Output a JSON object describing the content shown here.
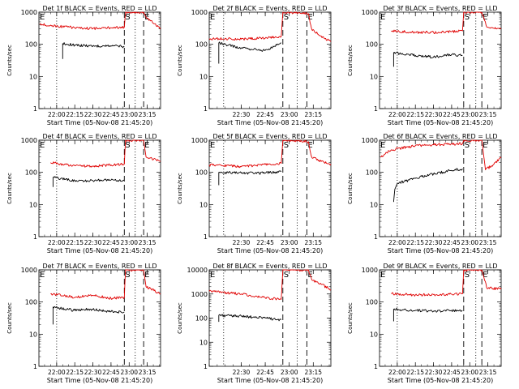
{
  "figure": {
    "xlabel": "Start Time (05-Nov-08 21:45:20)",
    "ylabel": "Counts/sec",
    "y_ticks": [
      {
        "value": 1,
        "label": "1"
      },
      {
        "value": 10,
        "label": "10"
      },
      {
        "value": 100,
        "label": "100"
      },
      {
        "value": 1000,
        "label": "1000"
      },
      {
        "value": 10000,
        "label": "10000"
      }
    ],
    "colors": {
      "events": "#000000",
      "lld": "#e00000"
    },
    "time_markers": {
      "S": "S",
      "E": "E",
      "corner": "E"
    }
  },
  "chart_data": [
    {
      "type": "line",
      "title": "Det 1f BLACK = Events, RED = LLD",
      "xlabel": "Start Time (05-Nov-08 21:45:20)",
      "ylabel": "Counts/sec",
      "x_range": [
        "21:45:20",
        "23:26"
      ],
      "y_log": true,
      "ylim": [
        1,
        1000
      ],
      "x_ticks": [
        "22:00",
        "22:15",
        "22:30",
        "22:45",
        "23:00",
        "23:15"
      ],
      "series": [
        {
          "name": "Events",
          "color": "black",
          "points": [
            [
              "22:05",
              35
            ],
            [
              "22:05",
              105
            ],
            [
              "22:15",
              95
            ],
            [
              "22:30",
              88
            ],
            [
              "22:45",
              90
            ],
            [
              "22:56",
              85
            ]
          ]
        },
        {
          "name": "LLD",
          "color": "red",
          "points": [
            [
              "21:46",
              420
            ],
            [
              "22:00",
              370
            ],
            [
              "22:15",
              330
            ],
            [
              "22:30",
              310
            ],
            [
              "22:45",
              330
            ],
            [
              "22:56",
              340
            ],
            [
              "22:57",
              1000
            ],
            [
              "23:12",
              1000
            ],
            [
              "23:14",
              700
            ],
            [
              "23:20",
              450
            ],
            [
              "23:26",
              320
            ]
          ]
        }
      ],
      "vlines": [
        {
          "time": "22:00",
          "style": "dotted"
        },
        {
          "time": "22:56",
          "style": "dashed",
          "label": "S"
        },
        {
          "time": "23:05",
          "style": "dotted"
        },
        {
          "time": "23:12",
          "style": "dashed",
          "label": "E"
        }
      ]
    },
    {
      "type": "line",
      "title": "Det 2f BLACK = Events, RED = LLD",
      "xlabel": "Start Time (05-Nov-08 21:45:20)",
      "ylabel": "Counts/sec",
      "x_range": [
        "22:10",
        "23:26"
      ],
      "y_log": true,
      "ylim": [
        1,
        1000
      ],
      "x_ticks": [
        "22:30",
        "22:45",
        "23:00",
        "23:15"
      ],
      "series": [
        {
          "name": "Events",
          "color": "black",
          "points": [
            [
              "22:16",
              25
            ],
            [
              "22:16",
              110
            ],
            [
              "22:30",
              75
            ],
            [
              "22:45",
              65
            ],
            [
              "22:55",
              110
            ]
          ]
        },
        {
          "name": "LLD",
          "color": "red",
          "points": [
            [
              "22:10",
              150
            ],
            [
              "22:30",
              145
            ],
            [
              "22:45",
              155
            ],
            [
              "22:55",
              175
            ],
            [
              "22:56",
              1000
            ],
            [
              "23:12",
              900
            ],
            [
              "23:14",
              300
            ],
            [
              "23:20",
              180
            ],
            [
              "23:26",
              120
            ]
          ]
        }
      ],
      "vlines": [
        {
          "time": "22:19",
          "style": "dotted"
        },
        {
          "time": "22:56",
          "style": "dashed",
          "label": "S"
        },
        {
          "time": "23:05",
          "style": "dotted"
        },
        {
          "time": "23:11",
          "style": "dashed",
          "label": "E"
        }
      ]
    },
    {
      "type": "line",
      "title": "Det 3f BLACK = Events, RED = LLD",
      "xlabel": "Start Time (05-Nov-08 21:45:20)",
      "ylabel": "Counts/sec",
      "x_range": [
        "21:45:20",
        "23:26"
      ],
      "y_log": true,
      "ylim": [
        1,
        1000
      ],
      "x_ticks": [
        "22:00",
        "22:15",
        "22:30",
        "22:45",
        "23:00",
        "23:15"
      ],
      "series": [
        {
          "name": "Events",
          "color": "black",
          "points": [
            [
              "21:57",
              20
            ],
            [
              "21:57",
              55
            ],
            [
              "22:15",
              45
            ],
            [
              "22:30",
              40
            ],
            [
              "22:45",
              48
            ],
            [
              "22:54",
              45
            ]
          ]
        },
        {
          "name": "LLD",
          "color": "red",
          "points": [
            [
              "21:55",
              260
            ],
            [
              "22:15",
              235
            ],
            [
              "22:30",
              235
            ],
            [
              "22:45",
              250
            ],
            [
              "22:54",
              260
            ],
            [
              "22:55",
              1000
            ],
            [
              "23:10",
              1000
            ],
            [
              "23:14",
              350
            ],
            [
              "23:26",
              300
            ]
          ]
        }
      ],
      "vlines": [
        {
          "time": "22:00",
          "style": "dotted"
        },
        {
          "time": "22:55",
          "style": "dashed",
          "label": "S"
        },
        {
          "time": "23:05",
          "style": "dotted"
        },
        {
          "time": "23:10",
          "style": "dashed",
          "label": "E"
        }
      ]
    },
    {
      "type": "line",
      "title": "Det 4f BLACK = Events, RED = LLD",
      "xlabel": "Start Time (05-Nov-08 21:45:20)",
      "ylabel": "Counts/sec",
      "x_range": [
        "21:45:20",
        "23:26"
      ],
      "y_log": true,
      "ylim": [
        1,
        1000
      ],
      "x_ticks": [
        "22:00",
        "22:15",
        "22:30",
        "22:45",
        "23:00",
        "23:15"
      ],
      "series": [
        {
          "name": "Events",
          "color": "black",
          "points": [
            [
              "21:57",
              35
            ],
            [
              "21:57",
              70
            ],
            [
              "22:15",
              55
            ],
            [
              "22:30",
              55
            ],
            [
              "22:45",
              58
            ],
            [
              "22:56",
              55
            ]
          ]
        },
        {
          "name": "LLD",
          "color": "red",
          "points": [
            [
              "21:55",
              200
            ],
            [
              "22:15",
              160
            ],
            [
              "22:30",
              155
            ],
            [
              "22:45",
              170
            ],
            [
              "22:56",
              180
            ],
            [
              "22:57",
              1000
            ],
            [
              "23:12",
              1000
            ],
            [
              "23:14",
              300
            ],
            [
              "23:26",
              220
            ]
          ]
        }
      ],
      "vlines": [
        {
          "time": "22:00",
          "style": "dotted"
        },
        {
          "time": "22:56",
          "style": "dashed",
          "label": "S"
        },
        {
          "time": "23:05",
          "style": "dotted"
        },
        {
          "time": "23:12",
          "style": "dashed",
          "label": "E"
        }
      ]
    },
    {
      "type": "line",
      "title": "Det 5f BLACK = Events, RED = LLD",
      "xlabel": "Start Time (05-Nov-08 21:45:20)",
      "ylabel": "Counts/sec",
      "x_range": [
        "22:10",
        "23:26"
      ],
      "y_log": true,
      "ylim": [
        1,
        1000
      ],
      "x_ticks": [
        "22:30",
        "22:45",
        "23:00",
        "23:15"
      ],
      "series": [
        {
          "name": "Events",
          "color": "black",
          "points": [
            [
              "22:16",
              40
            ],
            [
              "22:16",
              100
            ],
            [
              "22:30",
              95
            ],
            [
              "22:45",
              95
            ],
            [
              "22:55",
              105
            ]
          ]
        },
        {
          "name": "LLD",
          "color": "red",
          "points": [
            [
              "22:10",
              170
            ],
            [
              "22:30",
              150
            ],
            [
              "22:45",
              175
            ],
            [
              "22:55",
              190
            ],
            [
              "22:56",
              1000
            ],
            [
              "23:12",
              900
            ],
            [
              "23:14",
              300
            ],
            [
              "23:20",
              220
            ],
            [
              "23:26",
              180
            ]
          ]
        }
      ],
      "vlines": [
        {
          "time": "22:19",
          "style": "dotted"
        },
        {
          "time": "22:56",
          "style": "dashed",
          "label": "S"
        },
        {
          "time": "23:05",
          "style": "dotted"
        },
        {
          "time": "23:11",
          "style": "dashed",
          "label": "E"
        }
      ]
    },
    {
      "type": "line",
      "title": "Det 6f BLACK = Events, RED = LLD",
      "xlabel": "Start Time (05-Nov-08 21:45:20)",
      "ylabel": "Counts/sec",
      "x_range": [
        "21:45:20",
        "23:26"
      ],
      "y_log": true,
      "ylim": [
        1,
        1000
      ],
      "x_ticks": [
        "22:00",
        "22:15",
        "22:30",
        "22:45",
        "23:00",
        "23:15"
      ],
      "series": [
        {
          "name": "Events",
          "color": "black",
          "points": [
            [
              "21:57",
              12
            ],
            [
              "21:58",
              30
            ],
            [
              "22:00",
              45
            ],
            [
              "22:15",
              65
            ],
            [
              "22:30",
              90
            ],
            [
              "22:45",
              115
            ],
            [
              "22:54",
              130
            ]
          ]
        },
        {
          "name": "LLD",
          "color": "red",
          "points": [
            [
              "21:46",
              300
            ],
            [
              "21:55",
              500
            ],
            [
              "22:15",
              680
            ],
            [
              "22:30",
              720
            ],
            [
              "22:45",
              760
            ],
            [
              "22:54",
              780
            ],
            [
              "22:55",
              1000
            ],
            [
              "23:10",
              1000
            ],
            [
              "23:12",
              250
            ],
            [
              "23:13",
              120
            ],
            [
              "23:20",
              180
            ],
            [
              "23:26",
              300
            ]
          ]
        }
      ],
      "vlines": [
        {
          "time": "22:00",
          "style": "dotted"
        },
        {
          "time": "22:55",
          "style": "dashed",
          "label": "S"
        },
        {
          "time": "23:05",
          "style": "dotted"
        },
        {
          "time": "23:10",
          "style": "dashed",
          "label": "E"
        }
      ]
    },
    {
      "type": "line",
      "title": "Det 7f BLACK = Events, RED = LLD",
      "xlabel": "Start Time (05-Nov-08 21:45:20)",
      "ylabel": "Counts/sec",
      "x_range": [
        "21:45:20",
        "23:26"
      ],
      "y_log": true,
      "ylim": [
        1,
        1000
      ],
      "x_ticks": [
        "22:00",
        "22:15",
        "22:30",
        "22:45",
        "23:00",
        "23:15"
      ],
      "series": [
        {
          "name": "Events",
          "color": "black",
          "points": [
            [
              "21:57",
              20
            ],
            [
              "21:57",
              70
            ],
            [
              "22:15",
              55
            ],
            [
              "22:30",
              60
            ],
            [
              "22:45",
              50
            ],
            [
              "22:56",
              48
            ]
          ]
        },
        {
          "name": "LLD",
          "color": "red",
          "points": [
            [
              "21:55",
              180
            ],
            [
              "22:15",
              140
            ],
            [
              "22:30",
              160
            ],
            [
              "22:45",
              130
            ],
            [
              "22:56",
              140
            ],
            [
              "22:57",
              1000
            ],
            [
              "23:12",
              1000
            ],
            [
              "23:14",
              300
            ],
            [
              "23:26",
              180
            ]
          ]
        }
      ],
      "vlines": [
        {
          "time": "22:00",
          "style": "dotted"
        },
        {
          "time": "22:56",
          "style": "dashed",
          "label": "S"
        },
        {
          "time": "23:05",
          "style": "dotted"
        },
        {
          "time": "23:12",
          "style": "dashed",
          "label": "E"
        }
      ]
    },
    {
      "type": "line",
      "title": "Det 8f BLACK = Events, RED = LLD",
      "xlabel": "Start Time (05-Nov-08 21:45:20)",
      "ylabel": "Counts/sec",
      "x_range": [
        "22:10",
        "23:26"
      ],
      "y_log": true,
      "ylim": [
        1,
        10000
      ],
      "x_ticks": [
        "22:30",
        "22:45",
        "23:00",
        "23:15"
      ],
      "series": [
        {
          "name": "Events",
          "color": "black",
          "points": [
            [
              "22:16",
              70
            ],
            [
              "22:16",
              130
            ],
            [
              "22:30",
              120
            ],
            [
              "22:45",
              100
            ],
            [
              "22:55",
              85
            ]
          ]
        },
        {
          "name": "LLD",
          "color": "red",
          "points": [
            [
              "22:10",
              1300
            ],
            [
              "22:30",
              1000
            ],
            [
              "22:45",
              700
            ],
            [
              "22:55",
              600
            ],
            [
              "22:56",
              10000
            ],
            [
              "23:12",
              10000
            ],
            [
              "23:14",
              4000
            ],
            [
              "23:20",
              2500
            ],
            [
              "23:26",
              1500
            ]
          ]
        }
      ],
      "vlines": [
        {
          "time": "22:19",
          "style": "dotted"
        },
        {
          "time": "22:56",
          "style": "dashed",
          "label": "S"
        },
        {
          "time": "23:05",
          "style": "dotted"
        },
        {
          "time": "23:11",
          "style": "dashed",
          "label": "E"
        }
      ]
    },
    {
      "type": "line",
      "title": "Det 9f BLACK = Events, RED = LLD",
      "xlabel": "Start Time (05-Nov-08 21:45:20)",
      "ylabel": "Counts/sec",
      "x_range": [
        "21:45:20",
        "23:26"
      ],
      "y_log": true,
      "ylim": [
        1,
        1000
      ],
      "x_ticks": [
        "22:00",
        "22:15",
        "22:30",
        "22:45",
        "23:00",
        "23:15"
      ],
      "series": [
        {
          "name": "Events",
          "color": "black",
          "points": [
            [
              "21:57",
              25
            ],
            [
              "21:57",
              60
            ],
            [
              "22:15",
              55
            ],
            [
              "22:30",
              52
            ],
            [
              "22:45",
              55
            ],
            [
              "22:54",
              55
            ]
          ]
        },
        {
          "name": "LLD",
          "color": "red",
          "points": [
            [
              "21:55",
              180
            ],
            [
              "22:15",
              165
            ],
            [
              "22:30",
              170
            ],
            [
              "22:45",
              175
            ],
            [
              "22:54",
              180
            ],
            [
              "22:55",
              1000
            ],
            [
              "23:10",
              1000
            ],
            [
              "23:14",
              280
            ],
            [
              "23:26",
              250
            ]
          ]
        }
      ],
      "vlines": [
        {
          "time": "22:00",
          "style": "dotted"
        },
        {
          "time": "22:55",
          "style": "dashed",
          "label": "S"
        },
        {
          "time": "23:05",
          "style": "dotted"
        },
        {
          "time": "23:10",
          "style": "dashed",
          "label": "E"
        }
      ]
    }
  ]
}
